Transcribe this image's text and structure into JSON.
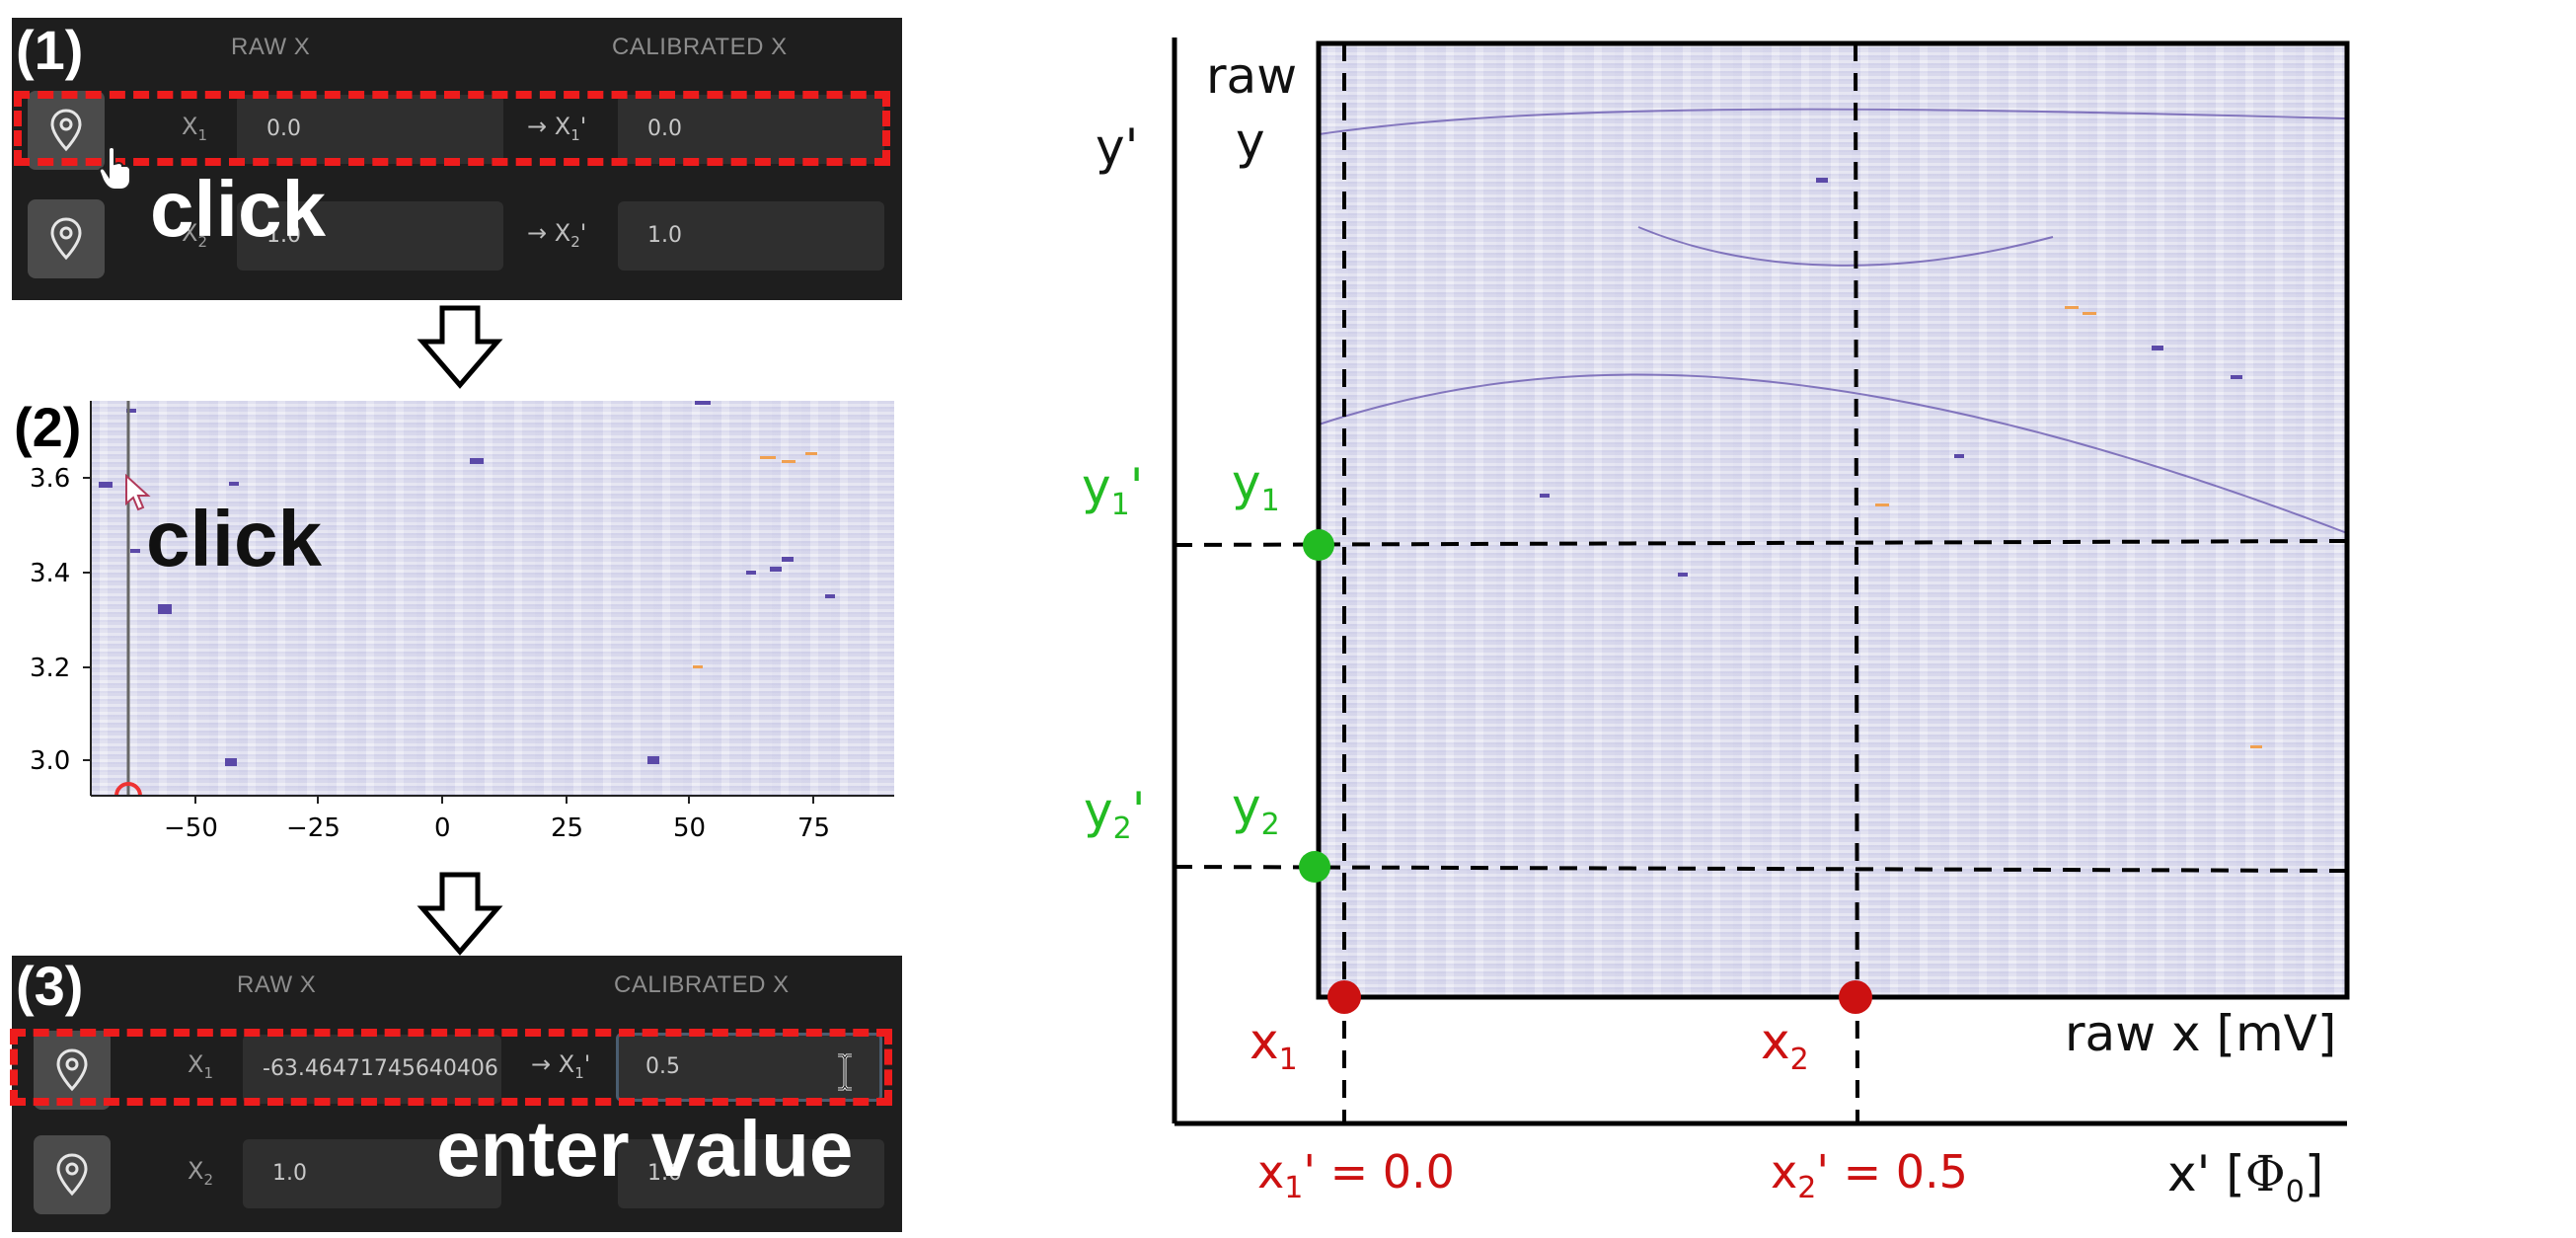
{
  "step1": {
    "number": "(1)",
    "header_raw": "RAW X",
    "header_cal": "CALIBRATED X",
    "row1": {
      "label": "X",
      "label_sub": "1",
      "arrow": "→ X",
      "arrow_sub": "1",
      "prime": "'",
      "raw_value": "0.0",
      "cal_value": "0.0"
    },
    "row2": {
      "label": "X",
      "label_sub": "2",
      "arrow": "→ X",
      "arrow_sub": "2",
      "prime": "'",
      "raw_value": "1.0",
      "cal_value": "1.0"
    },
    "annotation": "click"
  },
  "step2": {
    "number": "(2)",
    "annotation": "click",
    "y_ticks": [
      "3.6",
      "3.4",
      "3.2",
      "3.0"
    ],
    "x_ticks": [
      "−50",
      "−25",
      "0",
      "25",
      "50",
      "75"
    ]
  },
  "step3": {
    "number": "(3)",
    "header_raw": "RAW X",
    "header_cal": "CALIBRATED X",
    "row1": {
      "label": "X",
      "label_sub": "1",
      "arrow": "→ X",
      "arrow_sub": "1",
      "prime": "'",
      "raw_value": "-63.46471745640406",
      "cal_value": "0.5"
    },
    "row2": {
      "label": "X",
      "label_sub": "2",
      "raw_value": "1.0",
      "cal_value": "1.0"
    },
    "annotation": "enter value"
  },
  "diagram": {
    "y_prime_axis": "y'",
    "raw_y_line1": "raw",
    "raw_y_line2": "y",
    "y1": {
      "base": "y",
      "sub": "1"
    },
    "y2": {
      "base": "y",
      "sub": "2"
    },
    "y1_prime": {
      "base": "y",
      "sub": "1",
      "prime": "'"
    },
    "y2_prime": {
      "base": "y",
      "sub": "2",
      "prime": "'"
    },
    "x1": {
      "base": "x",
      "sub": "1"
    },
    "x2": {
      "base": "x",
      "sub": "2"
    },
    "x1_prime": {
      "base": "x",
      "sub": "1",
      "rest": "' = 0.0"
    },
    "x2_prime": {
      "base": "x",
      "sub": "2",
      "rest": "' = 0.5"
    },
    "raw_x_label": "raw x [mV]",
    "x_prime_label": "x' [",
    "phi": "Φ",
    "phi_sub": "0",
    "x_prime_close": "]",
    "colors": {
      "y_markers": "#22bb22",
      "x_markers": "#cc1111",
      "dash": "#ee1c1c"
    }
  }
}
